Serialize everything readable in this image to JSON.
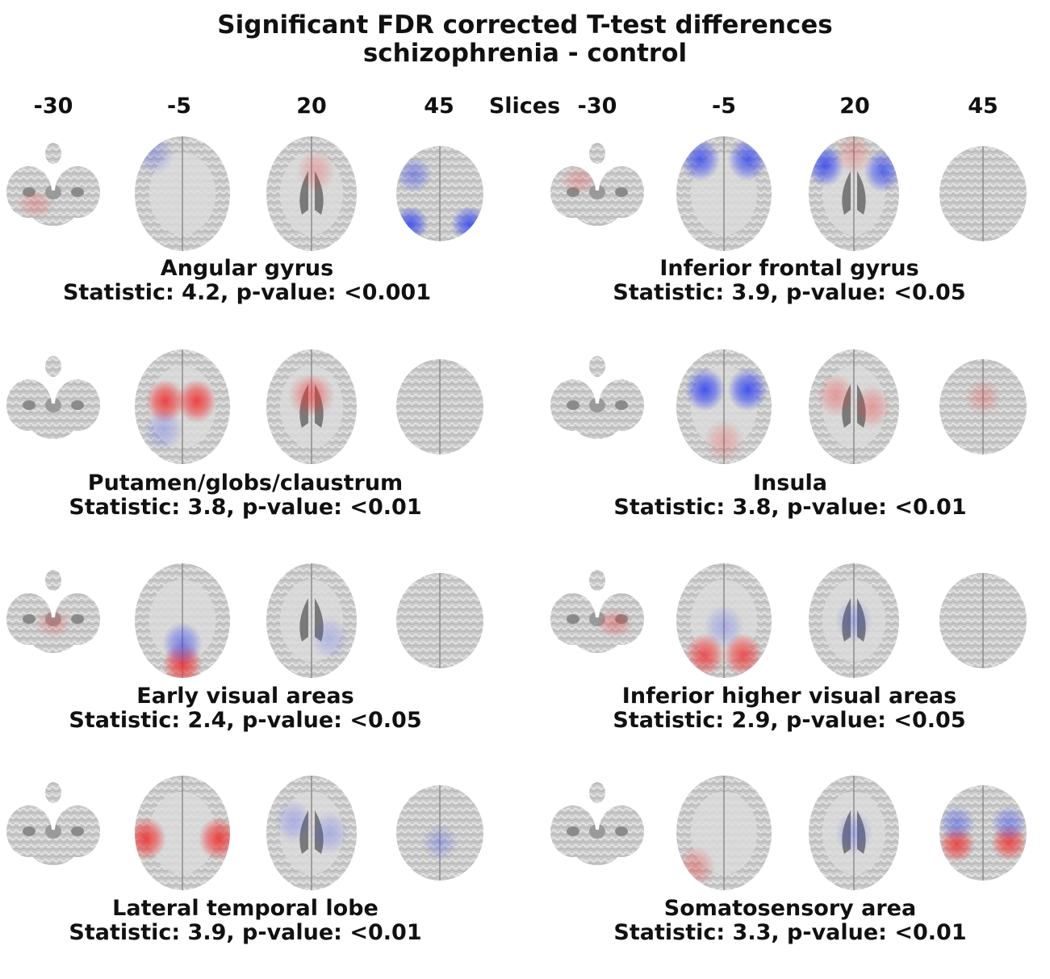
{
  "figure": {
    "title_line1": "Significant FDR corrected T-test differences",
    "title_line2": "schizophrenia - control",
    "slices_label": "Slices",
    "slice_values": [
      "-30",
      "-5",
      "20",
      "45"
    ]
  },
  "colors": {
    "positive": "#ee3333",
    "negative": "#3344ee",
    "brain": "#b8b8b8"
  },
  "panels": [
    {
      "name": "Angular gyrus",
      "stat_text": "Statistic: 4.2, p-value: <0.001",
      "blobs": [
        [
          3,
          0.16,
          0.82,
          "neg",
          0.9
        ],
        [
          3,
          0.84,
          0.82,
          "neg",
          0.9
        ],
        [
          3,
          0.2,
          0.3,
          "neg",
          0.5
        ],
        [
          1,
          0.2,
          0.15,
          "neg",
          0.3
        ],
        [
          0,
          0.3,
          0.7,
          "pos",
          0.3
        ],
        [
          2,
          0.55,
          0.3,
          "pos",
          0.3
        ]
      ]
    },
    {
      "name": "Inferior frontal gyrus",
      "stat_text": "Statistic: 3.9, p-value: <0.05",
      "blobs": [
        [
          1,
          0.25,
          0.2,
          "neg",
          0.85
        ],
        [
          1,
          0.75,
          0.2,
          "neg",
          0.85
        ],
        [
          2,
          0.18,
          0.25,
          "neg",
          0.9
        ],
        [
          2,
          0.82,
          0.3,
          "neg",
          0.8
        ],
        [
          2,
          0.5,
          0.15,
          "pos",
          0.3
        ],
        [
          0,
          0.3,
          0.4,
          "pos",
          0.3
        ]
      ]
    },
    {
      "name": "Putamen/globs/claustrum",
      "stat_text": "Statistic: 3.8, p-value: <0.01",
      "blobs": [
        [
          1,
          0.32,
          0.45,
          "pos",
          0.95
        ],
        [
          1,
          0.65,
          0.45,
          "pos",
          0.95
        ],
        [
          2,
          0.45,
          0.4,
          "pos",
          0.4
        ],
        [
          2,
          0.55,
          0.4,
          "pos",
          0.4
        ],
        [
          1,
          0.3,
          0.7,
          "neg",
          0.3
        ]
      ]
    },
    {
      "name": "Insula",
      "stat_text": "Statistic: 3.8, p-value: <0.01",
      "blobs": [
        [
          1,
          0.3,
          0.35,
          "neg",
          0.95
        ],
        [
          1,
          0.75,
          0.35,
          "neg",
          0.95
        ],
        [
          2,
          0.3,
          0.4,
          "pos",
          0.4
        ],
        [
          2,
          0.7,
          0.5,
          "pos",
          0.4
        ],
        [
          1,
          0.5,
          0.8,
          "pos",
          0.3
        ],
        [
          3,
          0.5,
          0.4,
          "pos",
          0.3
        ]
      ]
    },
    {
      "name": "Early visual areas",
      "stat_text": "Statistic: 2.4, p-value: <0.05",
      "blobs": [
        [
          1,
          0.5,
          0.88,
          "pos",
          0.95
        ],
        [
          1,
          0.5,
          0.7,
          "neg",
          0.6
        ],
        [
          0,
          0.5,
          0.6,
          "pos",
          0.3
        ],
        [
          2,
          0.7,
          0.65,
          "neg",
          0.25
        ]
      ]
    },
    {
      "name": "Inferior higher visual areas",
      "stat_text": "Statistic: 2.9, p-value: <0.05",
      "blobs": [
        [
          1,
          0.3,
          0.8,
          "pos",
          0.85
        ],
        [
          1,
          0.7,
          0.8,
          "pos",
          0.85
        ],
        [
          0,
          0.7,
          0.6,
          "pos",
          0.4
        ],
        [
          2,
          0.5,
          0.5,
          "neg",
          0.3
        ],
        [
          1,
          0.5,
          0.55,
          "neg",
          0.3
        ]
      ]
    },
    {
      "name": "Lateral temporal lobe",
      "stat_text": "Statistic: 3.9, p-value: <0.01",
      "blobs": [
        [
          1,
          0.12,
          0.55,
          "pos",
          0.95
        ],
        [
          1,
          0.88,
          0.55,
          "pos",
          0.95
        ],
        [
          2,
          0.3,
          0.4,
          "neg",
          0.3
        ],
        [
          2,
          0.7,
          0.5,
          "neg",
          0.3
        ],
        [
          3,
          0.5,
          0.6,
          "neg",
          0.3
        ]
      ]
    },
    {
      "name": "Somatosensory area",
      "stat_text": "Statistic: 3.3, p-value: <0.01",
      "blobs": [
        [
          3,
          0.2,
          0.62,
          "pos",
          0.9
        ],
        [
          3,
          0.8,
          0.6,
          "pos",
          0.9
        ],
        [
          3,
          0.2,
          0.4,
          "neg",
          0.5
        ],
        [
          3,
          0.8,
          0.4,
          "neg",
          0.5
        ],
        [
          1,
          0.2,
          0.8,
          "pos",
          0.4
        ],
        [
          2,
          0.5,
          0.5,
          "neg",
          0.3
        ]
      ]
    }
  ]
}
